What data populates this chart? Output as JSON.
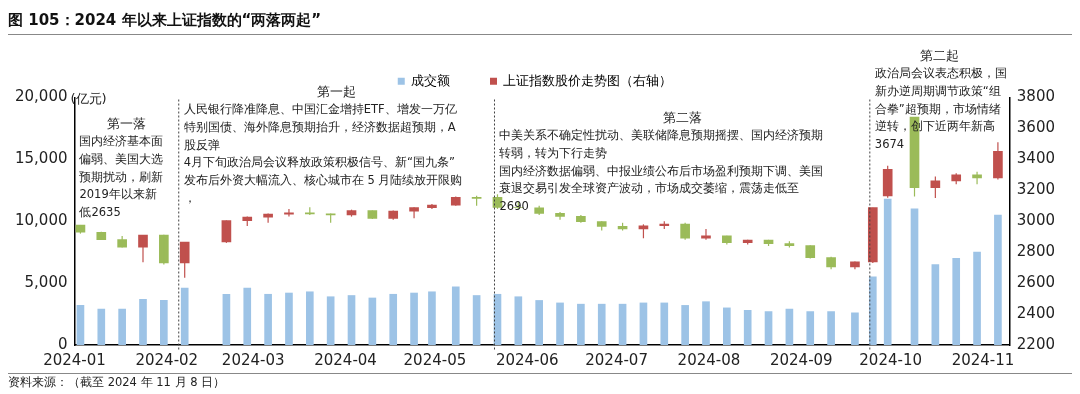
{
  "chart_data": {
    "type": "bar",
    "title": "图 105：2024 年以来上证指数的“两落两起”",
    "ylabel": "(亿元)",
    "legend": "top",
    "x": [
      "2024-01-03",
      "2024-01-10",
      "2024-01-17",
      "2024-01-24",
      "2024-01-31",
      "2024-02-07",
      "2024-02-21",
      "2024-02-28",
      "2024-03-06",
      "2024-03-13",
      "2024-03-20",
      "2024-03-27",
      "2024-04-03",
      "2024-04-10",
      "2024-04-17",
      "2024-04-24",
      "2024-04-30",
      "2024-05-08",
      "2024-05-15",
      "2024-05-22",
      "2024-05-29",
      "2024-06-05",
      "2024-06-12",
      "2024-06-19",
      "2024-06-26",
      "2024-07-03",
      "2024-07-10",
      "2024-07-17",
      "2024-07-24",
      "2024-07-31",
      "2024-08-07",
      "2024-08-14",
      "2024-08-21",
      "2024-08-28",
      "2024-09-04",
      "2024-09-11",
      "2024-09-19",
      "2024-09-25",
      "2024-09-30",
      "2024-10-09",
      "2024-10-16",
      "2024-10-23",
      "2024-10-30",
      "2024-11-06"
    ],
    "xlim": [
      "2024-01-01",
      "2024-11-10"
    ],
    "xticks": [
      "2024-01",
      "2024-02",
      "2024-03",
      "2024-04",
      "2024-05",
      "2024-06",
      "2024-07",
      "2024-08",
      "2024-09",
      "2024-10",
      "2024-11"
    ],
    "ylim": [
      0,
      20000
    ],
    "yticks": [
      0,
      {
        "value": 5000,
        "label": "5,000"
      },
      {
        "value": 10000,
        "label": "10,000"
      },
      {
        "value": 15000,
        "label": "15,000"
      },
      {
        "value": 20000,
        "label": "20,000"
      }
    ],
    "y2lim": [
      2200,
      3800
    ],
    "y2ticks": [
      2200,
      2400,
      2600,
      2800,
      3000,
      3200,
      3400,
      3600,
      3800
    ],
    "ref_lines": [
      {
        "axis": "x",
        "value": "2024-02-05",
        "color": "#404040",
        "line_style": "dotted"
      },
      {
        "axis": "x",
        "value": "2024-05-21",
        "color": "#404040",
        "line_style": "dotted"
      },
      {
        "axis": "x",
        "value": "2024-09-24",
        "color": "#404040",
        "line_style": "dotted"
      }
    ],
    "annotations": [
      "第一落",
      "国内经济基本面偏弱、美国大选预期扰动，刷新2019年以来新低2635",
      "第一起",
      "人民银行降准降息、中国汇金增持ETF、增发一万亿特别国债、海外降息预期抬升，经济数据超预期，A股反弹",
      "4月下旬政治局会议释放政策积极信号、新“国九条”发布后外资大幅流入、核心城市在 5 月陆续放开限购，",
      "第二落",
      "中美关系不确定性扰动、美联储降息预期摇摆、国内经济预期转弱，转为下行走势",
      "国内经济数据偏弱、中报业绩公布后市场盈利预期下调、美国衰退交易引发全球资产波动，市场成交萎缩，震荡走低至2690",
      "第二起",
      "政治局会议表态积极，国新办逆周期调节政策“组合拳”超预期，市场情绪逆转，创下近两年新高3674",
      "资料来源：（截至 2024 年 11 月 8 日）"
    ],
    "series": [
      {
        "name": "成交额",
        "color": "#9dc3e6",
        "values": [
          3200,
          2900,
          2900,
          3700,
          3600,
          4600,
          4100,
          4600,
          4100,
          4200,
          4300,
          3900,
          4000,
          3800,
          4100,
          4200,
          4300,
          4700,
          4000,
          4100,
          3900,
          3600,
          3400,
          3300,
          3300,
          3300,
          3400,
          3400,
          3200,
          3500,
          3000,
          2800,
          2700,
          2900,
          2700,
          2700,
          2600,
          5500,
          11800,
          11000,
          6500,
          7000,
          7500,
          10500
        ]
      },
      {
        "name": "上证指数股价走势图（右轴）",
        "type": "candlestick",
        "axis": "y2",
        "color": "#c0504d",
        "ohlc": [
          [
            2975,
            2976,
            2920,
            2929
          ],
          [
            2929,
            2932,
            2881,
            2881
          ],
          [
            2881,
            2905,
            2830,
            2832
          ],
          [
            2833,
            2910,
            2735,
            2910
          ],
          [
            2910,
            2912,
            2720,
            2730
          ],
          [
            2730,
            2866,
            2635,
            2866
          ],
          [
            2866,
            3005,
            2860,
            3004
          ],
          [
            3004,
            3030,
            2970,
            3027
          ],
          [
            3027,
            3050,
            2990,
            3046
          ],
          [
            3046,
            3080,
            3030,
            3054
          ],
          [
            3054,
            3090,
            3040,
            3048
          ],
          [
            3048,
            3050,
            2990,
            3041
          ],
          [
            3041,
            3075,
            3030,
            3069
          ],
          [
            3069,
            3070,
            3015,
            3019
          ],
          [
            3019,
            3070,
            3010,
            3065
          ],
          [
            3065,
            3090,
            3020,
            3088
          ],
          [
            3088,
            3112,
            3080,
            3104
          ],
          [
            3104,
            3160,
            3100,
            3154
          ],
          [
            3154,
            3165,
            3100,
            3148
          ],
          [
            3155,
            3174,
            3080,
            3089
          ],
          [
            3089,
            3125,
            3080,
            3087
          ],
          [
            3087,
            3100,
            3040,
            3051
          ],
          [
            3051,
            3060,
            3010,
            3032
          ],
          [
            3032,
            3040,
            2990,
            2998
          ],
          [
            2998,
            3000,
            2940,
            2967
          ],
          [
            2967,
            2990,
            2940,
            2950
          ],
          [
            2950,
            2980,
            2890,
            2971
          ],
          [
            2971,
            3000,
            2950,
            2982
          ],
          [
            2982,
            2990,
            2880,
            2891
          ],
          [
            2891,
            2950,
            2880,
            2905
          ],
          [
            2905,
            2906,
            2850,
            2862
          ],
          [
            2862,
            2880,
            2850,
            2879
          ],
          [
            2879,
            2880,
            2840,
            2855
          ],
          [
            2855,
            2870,
            2830,
            2842
          ],
          [
            2842,
            2845,
            2760,
            2765
          ],
          [
            2765,
            2770,
            2690,
            2704
          ],
          [
            2704,
            2740,
            2690,
            2737
          ],
          [
            2737,
            3088,
            2730,
            3088
          ],
          [
            3164,
            3358,
            3152,
            3336
          ],
          [
            3674,
            3674,
            3160,
            3217
          ],
          [
            3217,
            3290,
            3150,
            3261
          ],
          [
            3261,
            3310,
            3240,
            3300
          ],
          [
            3300,
            3320,
            3240,
            3280
          ],
          [
            3280,
            3510,
            3270,
            3452
          ]
        ],
        "colors": [
          "#9bbb59",
          "#9bbb59",
          "#9bbb59",
          "#c0504d",
          "#9bbb59",
          "#c0504d",
          "#c0504d",
          "#c0504d",
          "#c0504d",
          "#c0504d",
          "#9bbb59",
          "#9bbb59",
          "#c0504d",
          "#9bbb59",
          "#c0504d",
          "#c0504d",
          "#c0504d",
          "#c0504d",
          "#9bbb59",
          "#9bbb59",
          "#9bbb59",
          "#9bbb59",
          "#9bbb59",
          "#9bbb59",
          "#9bbb59",
          "#9bbb59",
          "#c0504d",
          "#c0504d",
          "#9bbb59",
          "#c0504d",
          "#9bbb59",
          "#c0504d",
          "#9bbb59",
          "#9bbb59",
          "#9bbb59",
          "#9bbb59",
          "#c0504d",
          "#c0504d",
          "#c0504d",
          "#9bbb59",
          "#c0504d",
          "#c0504d",
          "#9bbb59",
          "#c0504d"
        ]
      }
    ]
  }
}
